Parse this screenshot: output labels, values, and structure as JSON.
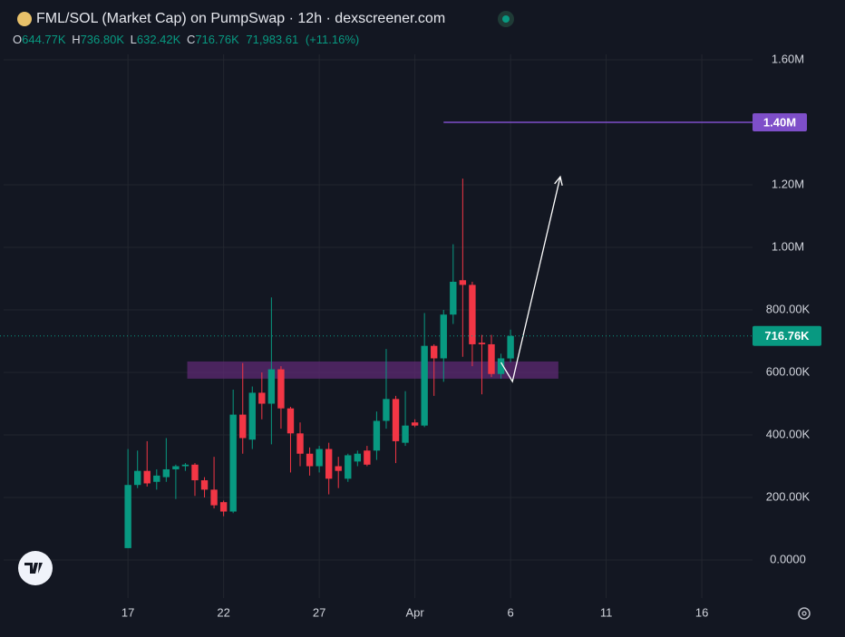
{
  "chart_data": {
    "type": "candlestick",
    "title": "FML/SOL (Market Cap) on PumpSwap · 12h · dexscreener.com",
    "header": {
      "open_key": "O",
      "open": "644.77K",
      "high_key": "H",
      "high": "736.80K",
      "low_key": "L",
      "low": "632.42K",
      "close_key": "C",
      "close": "716.76K",
      "change": "71,983.61",
      "change_pct": "(+11.16%)"
    },
    "up_color": "#089981",
    "down_color": "#f23645",
    "x": [
      0,
      1,
      2,
      3,
      4,
      5,
      6,
      7,
      8,
      9,
      10,
      11,
      12,
      13,
      14,
      15,
      16,
      17,
      18,
      19,
      20,
      21,
      22,
      23,
      24,
      25,
      26,
      27,
      28,
      29,
      30,
      31,
      32,
      33,
      34,
      35,
      36,
      37,
      38,
      39,
      40
    ],
    "open": [
      38000,
      240000,
      285000,
      250000,
      265000,
      290000,
      300000,
      305000,
      255000,
      225000,
      185000,
      155000,
      465000,
      385000,
      535000,
      500000,
      610000,
      485000,
      405000,
      340000,
      300000,
      355000,
      300000,
      260000,
      315000,
      350000,
      350000,
      445000,
      515000,
      375000,
      440000,
      430000,
      685000,
      645000,
      785000,
      895000,
      880000,
      695000,
      690000,
      595000,
      644770
    ],
    "high": [
      355000,
      350000,
      380000,
      290000,
      390000,
      305000,
      310000,
      310000,
      265000,
      330000,
      190000,
      545000,
      630000,
      555000,
      600000,
      840000,
      620000,
      490000,
      440000,
      360000,
      365000,
      375000,
      330000,
      340000,
      350000,
      365000,
      475000,
      675000,
      525000,
      540000,
      450000,
      790000,
      690000,
      800000,
      1010000,
      1220000,
      890000,
      720000,
      720000,
      660000,
      736800
    ],
    "low": [
      38000,
      230000,
      235000,
      225000,
      250000,
      195000,
      285000,
      205000,
      200000,
      165000,
      140000,
      150000,
      340000,
      355000,
      450000,
      370000,
      420000,
      280000,
      300000,
      270000,
      280000,
      210000,
      230000,
      250000,
      300000,
      300000,
      320000,
      420000,
      310000,
      365000,
      425000,
      425000,
      525000,
      570000,
      755000,
      650000,
      620000,
      530000,
      585000,
      580000,
      632420
    ],
    "close": [
      240000,
      285000,
      245000,
      270000,
      290000,
      300000,
      305000,
      255000,
      225000,
      175000,
      155000,
      465000,
      390000,
      535000,
      500000,
      610000,
      485000,
      405000,
      340000,
      300000,
      355000,
      260000,
      285000,
      335000,
      340000,
      305000,
      445000,
      515000,
      380000,
      430000,
      430000,
      685000,
      645000,
      785000,
      890000,
      880000,
      690000,
      690000,
      595000,
      645000,
      716760
    ],
    "last_price_label": "716.76K",
    "xlim": [
      -13,
      65.3
    ],
    "xticks": [
      {
        "value": 0,
        "label": "17"
      },
      {
        "value": 10,
        "label": "22"
      },
      {
        "value": 20,
        "label": "27"
      },
      {
        "value": 30,
        "label": "Apr"
      },
      {
        "value": 40,
        "label": "6"
      },
      {
        "value": 50,
        "label": "11"
      },
      {
        "value": 60,
        "label": "16"
      }
    ],
    "ylim": [
      -121700,
      1675400
    ],
    "yticks": [
      {
        "value": 0,
        "label": "0.0000"
      },
      {
        "value": 200000,
        "label": "200.00K"
      },
      {
        "value": 400000,
        "label": "400.00K"
      },
      {
        "value": 600000,
        "label": "600.00K"
      },
      {
        "value": 800000,
        "label": "800.00K"
      },
      {
        "value": 1000000,
        "label": "1.00M"
      },
      {
        "value": 1200000,
        "label": "1.20M"
      },
      {
        "value": 1600000,
        "label": "1.60M"
      }
    ],
    "grid": true,
    "level": {
      "value": 1400000,
      "label": "1.40M",
      "from": 33,
      "color": "#7e4fc9"
    },
    "zone": {
      "from": 6.2,
      "to": 45,
      "low": 580000,
      "high": 635000,
      "color": "#5e2a73"
    },
    "arrow": {
      "x": [
        39,
        40.2,
        45.2
      ],
      "y": [
        632000,
        571000,
        1226000
      ],
      "color": "#ffffff"
    }
  }
}
